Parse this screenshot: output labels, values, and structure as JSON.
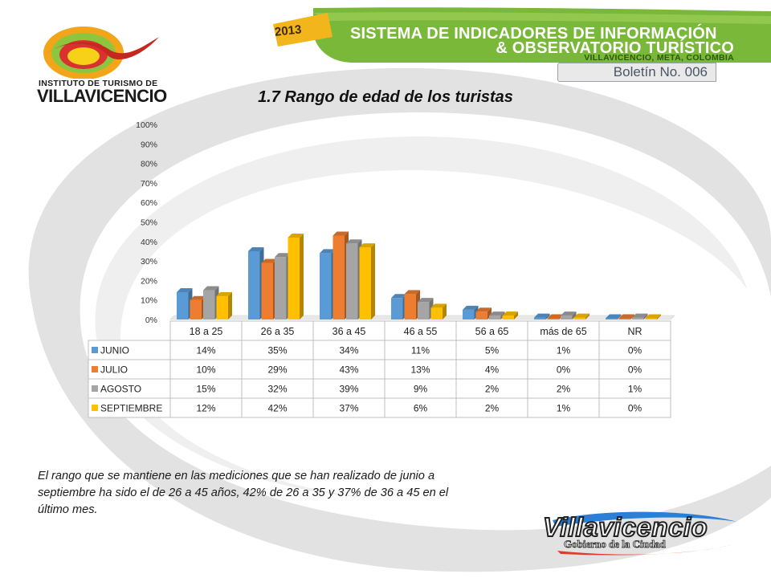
{
  "header": {
    "logo_line1": "INSTITUTO DE TURISMO DE",
    "logo_line2": "VILLAVICENCIO",
    "year": "2013",
    "banner_line1": "SISTEMA DE INDICADORES DE INFORMACIÓN",
    "banner_line2": "& OBSERVATORIO TURÍSTICO",
    "banner_line3": "VILLAVICENCIO, META, COLOMBIA",
    "bulletin": "Boletín No. 006"
  },
  "chart_data": {
    "type": "bar",
    "title": "1.7 Rango de edad de los turistas",
    "categories": [
      "18 a 25",
      "26 a 35",
      "36 a 45",
      "46 a 55",
      "56 a 65",
      "más de 65",
      "NR"
    ],
    "series": [
      {
        "name": "JUNIO",
        "values": [
          14,
          35,
          34,
          11,
          5,
          1,
          0
        ],
        "labels": [
          "14%",
          "35%",
          "34%",
          "11%",
          "5%",
          "1%",
          "0%"
        ],
        "color": "#5b9bd5"
      },
      {
        "name": "JULIO",
        "values": [
          10,
          29,
          43,
          13,
          4,
          0,
          0
        ],
        "labels": [
          "10%",
          "29%",
          "43%",
          "13%",
          "4%",
          "0%",
          "0%"
        ],
        "color": "#ed7d31"
      },
      {
        "name": "AGOSTO",
        "values": [
          15,
          32,
          39,
          9,
          2,
          2,
          1
        ],
        "labels": [
          "15%",
          "32%",
          "39%",
          "9%",
          "2%",
          "2%",
          "1%"
        ],
        "color": "#a5a5a5"
      },
      {
        "name": "SEPTIEMBRE",
        "values": [
          12,
          42,
          37,
          6,
          2,
          1,
          0
        ],
        "labels": [
          "12%",
          "42%",
          "37%",
          "6%",
          "2%",
          "1%",
          "0%"
        ],
        "color": "#ffc000"
      }
    ],
    "y_ticks": [
      "0%",
      "10%",
      "20%",
      "30%",
      "40%",
      "50%",
      "60%",
      "70%",
      "80%",
      "90%",
      "100%"
    ],
    "ylim": [
      0,
      100
    ],
    "bar_style": "3d-clustered",
    "legend": "data-table"
  },
  "body_text": "El rango que se mantiene en las mediciones que se han realizado de junio a septiembre ha sido el de 26 a 45 años, 42% de 26 a 35 y 37% de 36 a 45 en el último mes.",
  "footer": {
    "city": "Villavicencio",
    "tagline": "Gobierno de la Ciudad"
  }
}
